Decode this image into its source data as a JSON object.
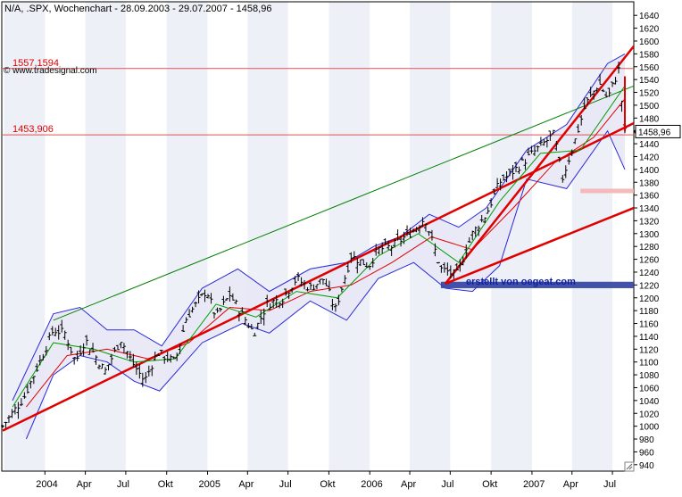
{
  "header": {
    "title": "N/A, .SPX, Wochenchart - 28.09.2003 - 29.07.2007 - 1458,96",
    "source": "© www.tradesignal.com",
    "watermark": "erstellt von oegeat.com"
  },
  "colors": {
    "background": "#ffffff",
    "stripe": "#eef0f8",
    "price": "#000000",
    "band": "#2a2ad8",
    "band_fill": "#e6e6f6",
    "ma_fast": "#00a000",
    "ma_slow": "#e00000",
    "channel_top": "#008000",
    "trend_red": "#e00000",
    "level_line": "#e05050",
    "support_zone": "#3040a0",
    "resistance_zone": "#f4b4b4",
    "axis": "#000000"
  },
  "chart_data": {
    "type": "line",
    "title": "N/A, .SPX, Wochenchart - 28.09.2003 - 29.07.2007 - 1458,96",
    "x_range": [
      "2003-09-28",
      "2007-07-29"
    ],
    "ylim": [
      930,
      1650
    ],
    "y_ticks": [
      940,
      960,
      980,
      1000,
      1020,
      1040,
      1060,
      1080,
      1100,
      1120,
      1140,
      1160,
      1180,
      1200,
      1220,
      1240,
      1260,
      1280,
      1300,
      1320,
      1340,
      1360,
      1380,
      1400,
      1420,
      1440,
      1460,
      1480,
      1500,
      1520,
      1540,
      1560,
      1580,
      1600,
      1620,
      1640
    ],
    "x_tick_labels": [
      {
        "label": "2004",
        "date": "2004-01"
      },
      {
        "label": "Apr",
        "date": "2004-04"
      },
      {
        "label": "Jul",
        "date": "2004-07"
      },
      {
        "label": "Okt",
        "date": "2004-10"
      },
      {
        "label": "2005",
        "date": "2005-01"
      },
      {
        "label": "Apr",
        "date": "2005-04"
      },
      {
        "label": "Jul",
        "date": "2005-07"
      },
      {
        "label": "Okt",
        "date": "2005-10"
      },
      {
        "label": "2006",
        "date": "2006-01"
      },
      {
        "label": "Apr",
        "date": "2006-04"
      },
      {
        "label": "Jul",
        "date": "2006-07"
      },
      {
        "label": "Okt",
        "date": "2006-10"
      },
      {
        "label": "2007",
        "date": "2007-01"
      },
      {
        "label": "Apr",
        "date": "2007-04"
      },
      {
        "label": "Jul",
        "date": "2007-07"
      }
    ],
    "price_path": [
      [
        "2003-09-28",
        1000
      ],
      [
        "2003-11-15",
        1045
      ],
      [
        "2003-12-20",
        1100
      ],
      [
        "2004-01-20",
        1150
      ],
      [
        "2004-02-15",
        1145
      ],
      [
        "2004-03-10",
        1100
      ],
      [
        "2004-04-01",
        1135
      ],
      [
        "2004-05-15",
        1085
      ],
      [
        "2004-06-20",
        1135
      ],
      [
        "2004-07-15",
        1100
      ],
      [
        "2004-08-12",
        1070
      ],
      [
        "2004-09-10",
        1115
      ],
      [
        "2004-10-20",
        1100
      ],
      [
        "2004-11-15",
        1170
      ],
      [
        "2004-12-30",
        1212
      ],
      [
        "2005-01-20",
        1170
      ],
      [
        "2005-02-20",
        1205
      ],
      [
        "2005-04-15",
        1145
      ],
      [
        "2005-05-15",
        1190
      ],
      [
        "2005-06-20",
        1200
      ],
      [
        "2005-07-20",
        1230
      ],
      [
        "2005-08-20",
        1215
      ],
      [
        "2005-09-20",
        1230
      ],
      [
        "2005-10-15",
        1180
      ],
      [
        "2005-11-20",
        1265
      ],
      [
        "2005-12-30",
        1250
      ],
      [
        "2006-01-20",
        1275
      ],
      [
        "2006-02-20",
        1280
      ],
      [
        "2006-04-10",
        1305
      ],
      [
        "2006-05-05",
        1325
      ],
      [
        "2006-06-10",
        1245
      ],
      [
        "2006-07-15",
        1235
      ],
      [
        "2006-08-20",
        1300
      ],
      [
        "2006-09-20",
        1330
      ],
      [
        "2006-10-20",
        1380
      ],
      [
        "2006-11-25",
        1400
      ],
      [
        "2006-12-25",
        1420
      ],
      [
        "2007-02-20",
        1455
      ],
      [
        "2007-03-10",
        1385
      ],
      [
        "2007-04-10",
        1450
      ],
      [
        "2007-05-01",
        1500
      ],
      [
        "2007-06-01",
        1535
      ],
      [
        "2007-06-20",
        1510
      ],
      [
        "2007-07-15",
        1555
      ],
      [
        "2007-07-29",
        1459
      ]
    ],
    "bollinger_upper": [
      [
        "2003-10-20",
        1040
      ],
      [
        "2004-01-20",
        1175
      ],
      [
        "2004-03-20",
        1185
      ],
      [
        "2004-05-20",
        1150
      ],
      [
        "2004-07-20",
        1150
      ],
      [
        "2004-09-20",
        1125
      ],
      [
        "2004-12-20",
        1215
      ],
      [
        "2005-03-10",
        1245
      ],
      [
        "2005-05-20",
        1210
      ],
      [
        "2005-08-20",
        1245
      ],
      [
        "2005-11-10",
        1255
      ],
      [
        "2006-01-10",
        1280
      ],
      [
        "2006-03-10",
        1295
      ],
      [
        "2006-05-15",
        1330
      ],
      [
        "2006-07-20",
        1310
      ],
      [
        "2006-09-20",
        1340
      ],
      [
        "2006-12-20",
        1430
      ],
      [
        "2007-03-20",
        1470
      ],
      [
        "2007-06-20",
        1565
      ],
      [
        "2007-07-29",
        1580
      ]
    ],
    "bollinger_lower": [
      [
        "2003-11-20",
        980
      ],
      [
        "2004-01-20",
        1080
      ],
      [
        "2004-03-20",
        1110
      ],
      [
        "2004-05-20",
        1100
      ],
      [
        "2004-07-20",
        1070
      ],
      [
        "2004-09-15",
        1055
      ],
      [
        "2004-12-20",
        1130
      ],
      [
        "2005-03-20",
        1160
      ],
      [
        "2005-05-20",
        1145
      ],
      [
        "2005-08-20",
        1195
      ],
      [
        "2005-11-10",
        1165
      ],
      [
        "2006-01-20",
        1230
      ],
      [
        "2006-04-10",
        1255
      ],
      [
        "2006-06-20",
        1215
      ],
      [
        "2006-08-20",
        1210
      ],
      [
        "2006-10-20",
        1250
      ],
      [
        "2006-12-20",
        1385
      ],
      [
        "2007-03-20",
        1370
      ],
      [
        "2007-06-20",
        1460
      ],
      [
        "2007-07-29",
        1400
      ]
    ],
    "ma_fast": [
      [
        "2003-10-20",
        1030
      ],
      [
        "2004-01-20",
        1130
      ],
      [
        "2004-04-20",
        1120
      ],
      [
        "2004-07-20",
        1100
      ],
      [
        "2004-10-20",
        1105
      ],
      [
        "2005-01-20",
        1190
      ],
      [
        "2005-04-20",
        1170
      ],
      [
        "2005-07-20",
        1210
      ],
      [
        "2005-10-20",
        1200
      ],
      [
        "2006-01-20",
        1265
      ],
      [
        "2006-04-20",
        1300
      ],
      [
        "2006-07-20",
        1255
      ],
      [
        "2006-10-20",
        1350
      ],
      [
        "2007-01-20",
        1425
      ],
      [
        "2007-04-20",
        1430
      ],
      [
        "2007-07-29",
        1530
      ]
    ],
    "ma_slow": [
      [
        "2003-11-20",
        1030
      ],
      [
        "2004-02-20",
        1110
      ],
      [
        "2004-05-20",
        1120
      ],
      [
        "2004-08-20",
        1105
      ],
      [
        "2004-11-20",
        1130
      ],
      [
        "2005-02-20",
        1185
      ],
      [
        "2005-05-20",
        1180
      ],
      [
        "2005-08-20",
        1210
      ],
      [
        "2005-11-20",
        1220
      ],
      [
        "2006-02-20",
        1255
      ],
      [
        "2006-05-20",
        1295
      ],
      [
        "2006-08-20",
        1275
      ],
      [
        "2006-11-20",
        1340
      ],
      [
        "2007-02-20",
        1410
      ],
      [
        "2007-05-20",
        1450
      ],
      [
        "2007-07-29",
        1510
      ]
    ],
    "trend_lines": [
      {
        "kind": "support",
        "from": [
          "2003-09-28",
          993
        ],
        "to": [
          "2007-07-29",
          1472
        ]
      },
      {
        "kind": "channel-top",
        "from": [
          "2004-01-20",
          1165
        ],
        "to": [
          "2007-07-29",
          1530
        ]
      },
      {
        "kind": "support-2006",
        "from": [
          "2006-06-20",
          1222
        ],
        "to": [
          "2007-07-29",
          1340
        ]
      },
      {
        "kind": "steep-support",
        "from": [
          "2006-06-20",
          1222
        ],
        "to": [
          "2007-07-29",
          1592
        ]
      }
    ],
    "horizontal_levels": [
      {
        "label": "1557,1594",
        "value": 1557.1594
      },
      {
        "label": "1453,906",
        "value": 1453.906
      }
    ],
    "zones": [
      {
        "kind": "support",
        "from": "2006-06-10",
        "to": "2007-07-29",
        "low": 1215,
        "high": 1225
      },
      {
        "kind": "resistance",
        "from": "2007-04-20",
        "to": "2007-07-29",
        "low": 1363,
        "high": 1370
      }
    ],
    "last_price_label": "1458,96",
    "last_price": 1458.96
  }
}
